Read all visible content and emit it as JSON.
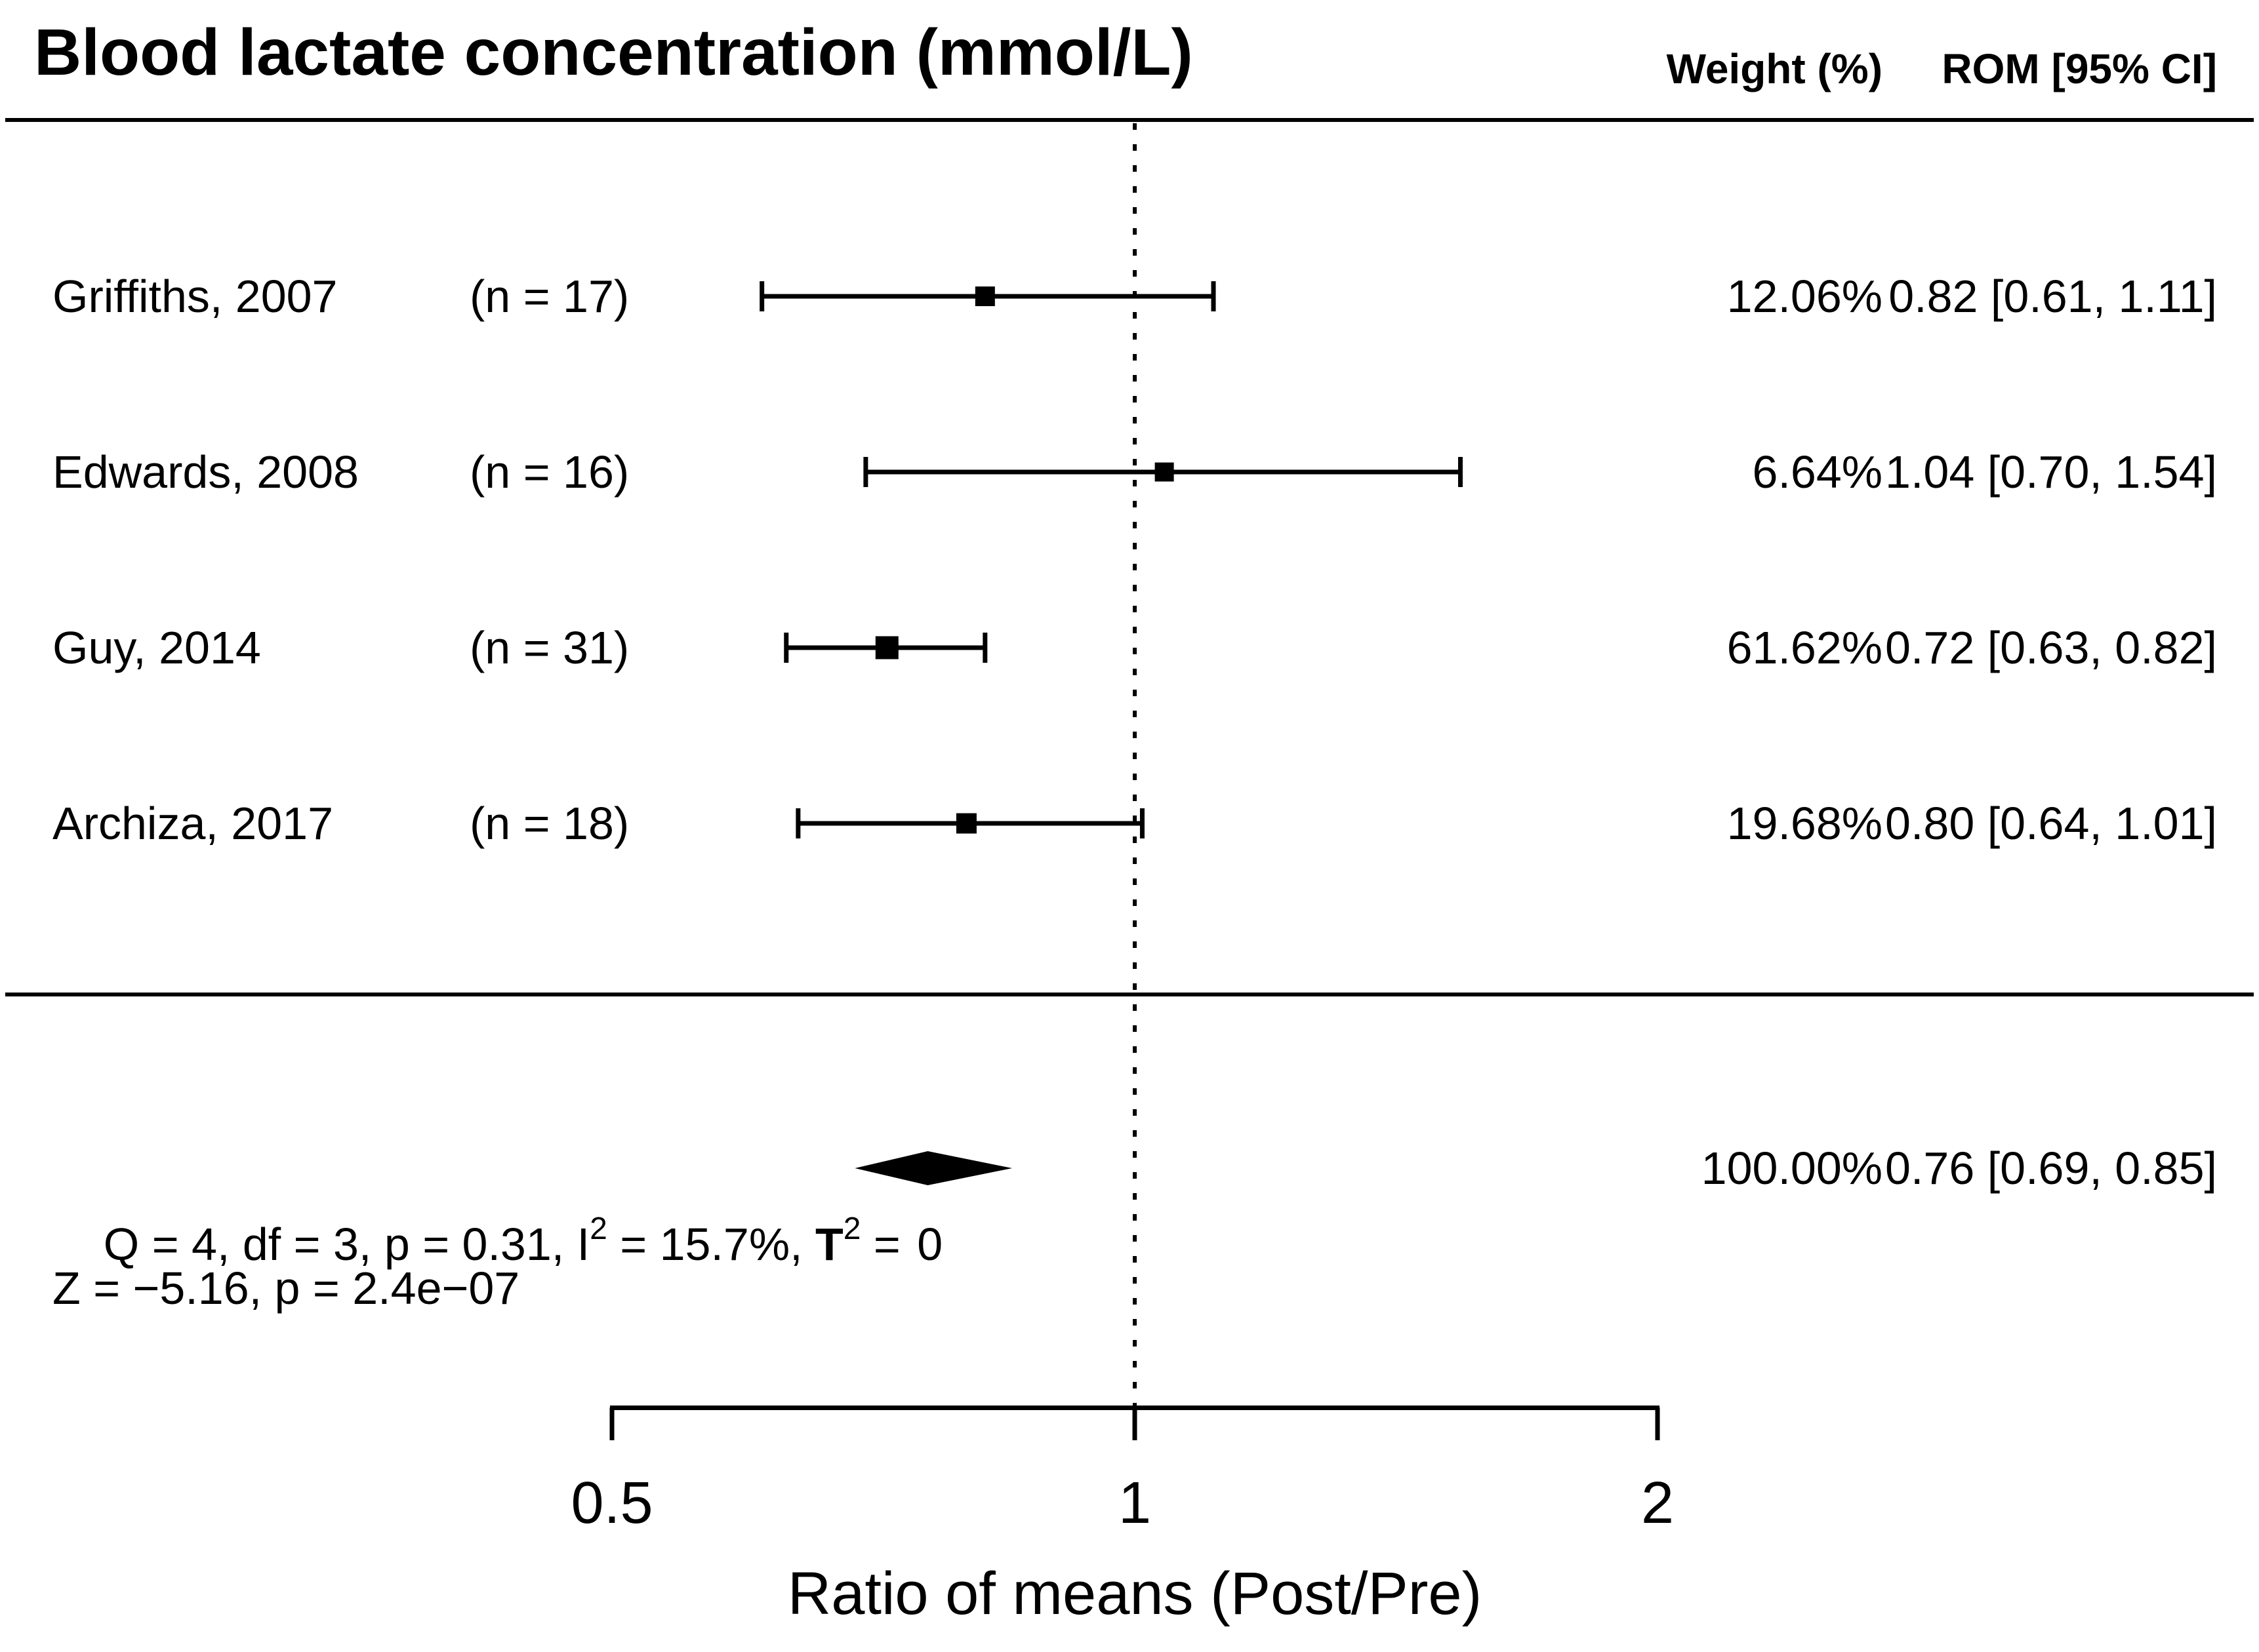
{
  "title": "Blood lactate concentration (mmol/L)",
  "columns": {
    "weight_header": "Weight (%)",
    "rom_header": "ROM [95% CI]"
  },
  "colors": {
    "foreground": "#000000",
    "background": "#ffffff"
  },
  "chart_data": {
    "type": "forest",
    "title": "Blood lactate concentration (mmol/L)",
    "x_axis": {
      "label": "Ratio of means (Post/Pre)",
      "scale": "log",
      "ticks": [
        0.5,
        1,
        2
      ],
      "tick_labels": [
        "0.5",
        "1",
        "2"
      ],
      "range": [
        0.5,
        2
      ],
      "reference_line": 1,
      "reference_line_style": "dotted"
    },
    "studies": [
      {
        "label": "Griffiths, 2007",
        "n_label": "(n = 17)",
        "n": 17,
        "weight_pct": 12.06,
        "weight_label": "12.06%",
        "rom": 0.82,
        "ci_low": 0.61,
        "ci_high": 1.11,
        "rom_label": "0.82 [0.61, 1.11]"
      },
      {
        "label": "Edwards, 2008",
        "n_label": "(n = 16)",
        "n": 16,
        "weight_pct": 6.64,
        "weight_label": "6.64%",
        "rom": 1.04,
        "ci_low": 0.7,
        "ci_high": 1.54,
        "rom_label": "1.04 [0.70, 1.54]"
      },
      {
        "label": "Guy, 2014",
        "n_label": "(n = 31)",
        "n": 31,
        "weight_pct": 61.62,
        "weight_label": "61.62%",
        "rom": 0.72,
        "ci_low": 0.63,
        "ci_high": 0.82,
        "rom_label": "0.72 [0.63, 0.82]"
      },
      {
        "label": "Archiza, 2017",
        "n_label": "(n = 18)",
        "n": 18,
        "weight_pct": 19.68,
        "weight_label": "19.68%",
        "rom": 0.8,
        "ci_low": 0.64,
        "ci_high": 1.01,
        "rom_label": "0.80 [0.64, 1.01]"
      }
    ],
    "summary": {
      "het_parts": {
        "p1": "Q = 4, df = 3, p = 0.31, I",
        "p2": "2",
        "p3": " = 15.7%, ",
        "p4": "T",
        "p5": "2",
        "p6": " = "
      },
      "tau2_value": "0",
      "weight_pct": 100.0,
      "weight_label": "100.00%",
      "rom": 0.76,
      "ci_low": 0.69,
      "ci_high": 0.85,
      "rom_label": "0.76 [0.69, 0.85]",
      "z_text": "Z = −5.16, p = 2.4e−07"
    }
  }
}
